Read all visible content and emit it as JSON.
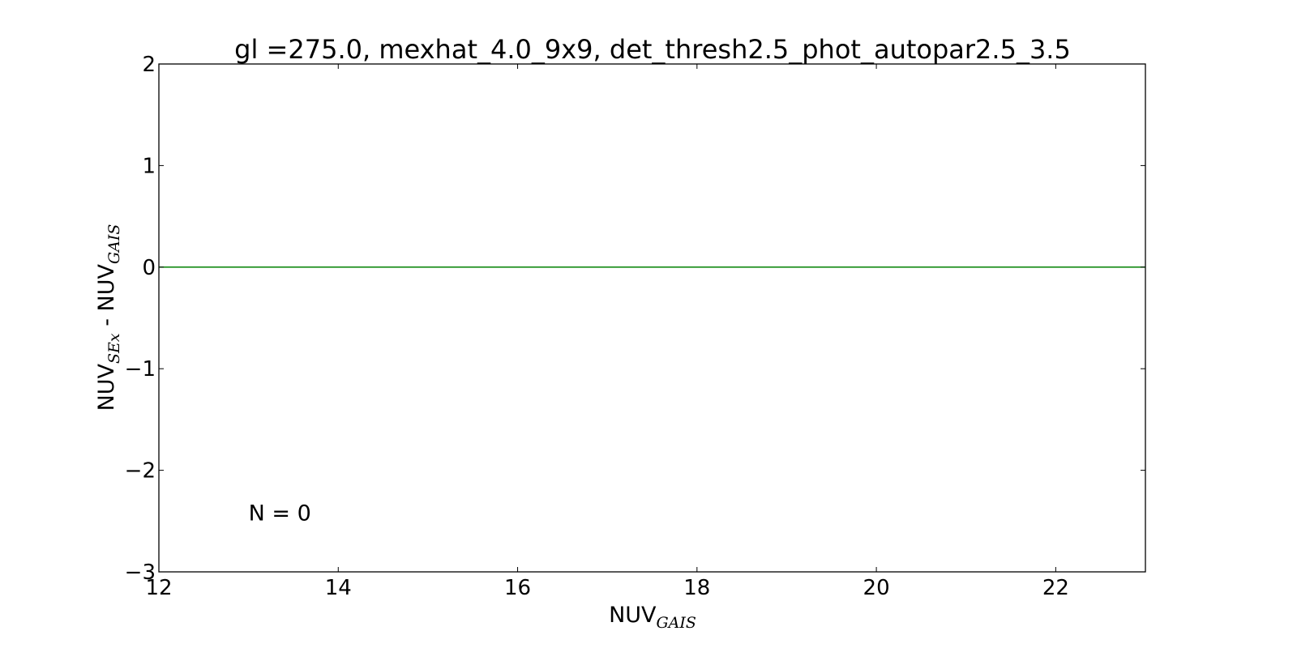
{
  "chart_data": {
    "type": "line",
    "title": "gl =275.0, mexhat_4.0_9x9, det_thresh2.5_phot_autopar2.5_3.5",
    "xlabel": {
      "main": "NUV",
      "sub": "GAIS"
    },
    "ylabel": {
      "main1": "NUV",
      "sub1": "SEx",
      "sep": " - ",
      "main2": "NUV",
      "sub2": "GAIS"
    },
    "xlim": [
      12,
      23
    ],
    "ylim": [
      -3,
      2
    ],
    "xticks": [
      12,
      14,
      16,
      18,
      20,
      22
    ],
    "xtick_labels": [
      "12",
      "14",
      "16",
      "18",
      "20",
      "22"
    ],
    "yticks": [
      2,
      1,
      0,
      -1,
      -2,
      -3
    ],
    "ytick_labels": [
      "2",
      "1",
      "0",
      "−1",
      "−2",
      "−3"
    ],
    "grid": false,
    "series": [
      {
        "x": [
          12,
          23
        ],
        "y": [
          0,
          0
        ],
        "color": "#008000"
      }
    ],
    "annotations": [
      {
        "text": "N = 0",
        "x": 13,
        "y": -2.42
      }
    ],
    "colors": {
      "axis": "#000000",
      "reference_line": "#008000",
      "background": "#ffffff"
    }
  }
}
